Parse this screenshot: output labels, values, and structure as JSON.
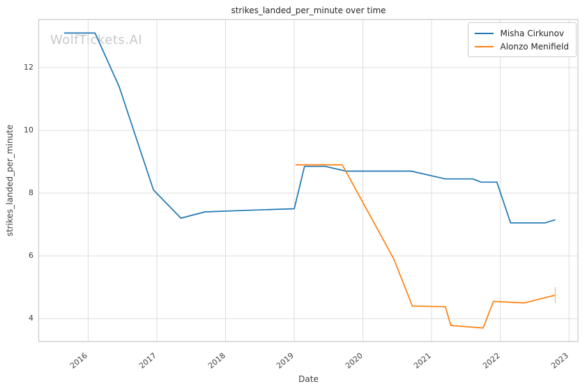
{
  "title": "strikes_landed_per_minute over time",
  "watermark": "WolfTickets.AI",
  "axes": {
    "xlabel": "Date",
    "ylabel": "strikes_landed_per_minute"
  },
  "legend": {
    "items": [
      {
        "label": "Misha Cirkunov",
        "color": "#1f77b4"
      },
      {
        "label": "Alonzo Menifield",
        "color": "#ff7f0e"
      }
    ]
  },
  "colors": {
    "background": "#ffffff",
    "grid": "#dcdcdc",
    "spine": "#c9c9c9",
    "title_text": "#262626",
    "tick_text": "#3d3d3d",
    "watermark_text": "#c8c8c8",
    "legend_border": "#cccccc",
    "series_blue": "#1f77b4",
    "series_orange": "#ff7f0e",
    "errorbar_orange": "#ffc18f"
  },
  "chart_data": {
    "type": "line",
    "title": "strikes_landed_per_minute over time",
    "xlabel": "Date",
    "ylabel": "strikes_landed_per_minute",
    "xlim": [
      2015.28,
      2023.13
    ],
    "ylim": [
      3.27,
      13.53
    ],
    "x_ticks": [
      2016,
      2017,
      2018,
      2019,
      2020,
      2021,
      2022,
      2023
    ],
    "y_ticks": [
      4,
      6,
      8,
      10,
      12
    ],
    "grid": true,
    "legend_position": "upper right",
    "series": [
      {
        "name": "Misha Cirkunov",
        "color": "#1f77b4",
        "points": [
          [
            2015.65,
            13.1
          ],
          [
            2016.1,
            13.1
          ],
          [
            2016.45,
            11.4
          ],
          [
            2016.95,
            8.1
          ],
          [
            2017.35,
            7.2
          ],
          [
            2017.7,
            7.4
          ],
          [
            2018.3,
            7.45
          ],
          [
            2019.0,
            7.5
          ],
          [
            2019.15,
            8.85
          ],
          [
            2019.45,
            8.85
          ],
          [
            2019.75,
            8.7
          ],
          [
            2020.7,
            8.7
          ],
          [
            2021.2,
            8.45
          ],
          [
            2021.6,
            8.45
          ],
          [
            2021.72,
            8.35
          ],
          [
            2021.95,
            8.35
          ],
          [
            2022.15,
            7.05
          ],
          [
            2022.65,
            7.05
          ],
          [
            2022.8,
            7.15
          ]
        ]
      },
      {
        "name": "Alonzo Menifield",
        "color": "#ff7f0e",
        "points": [
          [
            2019.02,
            8.9
          ],
          [
            2019.7,
            8.9
          ],
          [
            2020.45,
            5.9
          ],
          [
            2020.72,
            4.4
          ],
          [
            2021.2,
            4.38
          ],
          [
            2021.28,
            3.78
          ],
          [
            2021.75,
            3.7
          ],
          [
            2021.9,
            4.55
          ],
          [
            2022.35,
            4.5
          ],
          [
            2022.8,
            4.75
          ]
        ],
        "end_errorbar": {
          "x": 2022.8,
          "y_low": 4.5,
          "y_high": 5.0,
          "color": "#ffc18f"
        }
      }
    ]
  }
}
